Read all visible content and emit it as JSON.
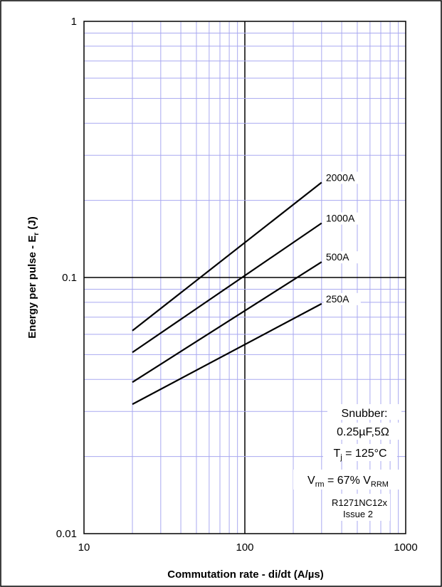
{
  "chart_data": {
    "type": "line",
    "title": "",
    "xlabel": "Commutation rate - di/dt (A/µs)",
    "ylabel_main": "Energy per pulse - E",
    "ylabel_sub": "r",
    "ylabel_tail": " (J)",
    "x_scale": "log",
    "y_scale": "log",
    "xlim": [
      10,
      1000
    ],
    "ylim": [
      0.01,
      1
    ],
    "x_ticks": [
      "10",
      "100",
      "1000"
    ],
    "y_ticks": [
      "1",
      "0.1",
      "0.01"
    ],
    "grid": true,
    "series": [
      {
        "name": "2000A",
        "x": [
          20,
          300
        ],
        "y": [
          0.062,
          0.235
        ]
      },
      {
        "name": "1000A",
        "x": [
          20,
          300
        ],
        "y": [
          0.051,
          0.163
        ]
      },
      {
        "name": "500A",
        "x": [
          20,
          300
        ],
        "y": [
          0.039,
          0.115
        ]
      },
      {
        "name": "250A",
        "x": [
          20,
          300
        ],
        "y": [
          0.032,
          0.079
        ]
      }
    ],
    "annotations": {
      "snubber_label": "Snubber:",
      "snubber_value": "0.25µF,5Ω",
      "tj_main": "T",
      "tj_sub": "j",
      "tj_tail": " = 125°C",
      "vrm_main": "V",
      "vrm_sub": "rm",
      "vrm_mid": " = 67% V",
      "vrm_sub2": "RRM",
      "part_number": "R1271NC12x",
      "issue": "Issue 2"
    },
    "colors": {
      "minor_grid": "#a9a9f0",
      "major_grid": "#000000",
      "series": "#000000"
    }
  }
}
